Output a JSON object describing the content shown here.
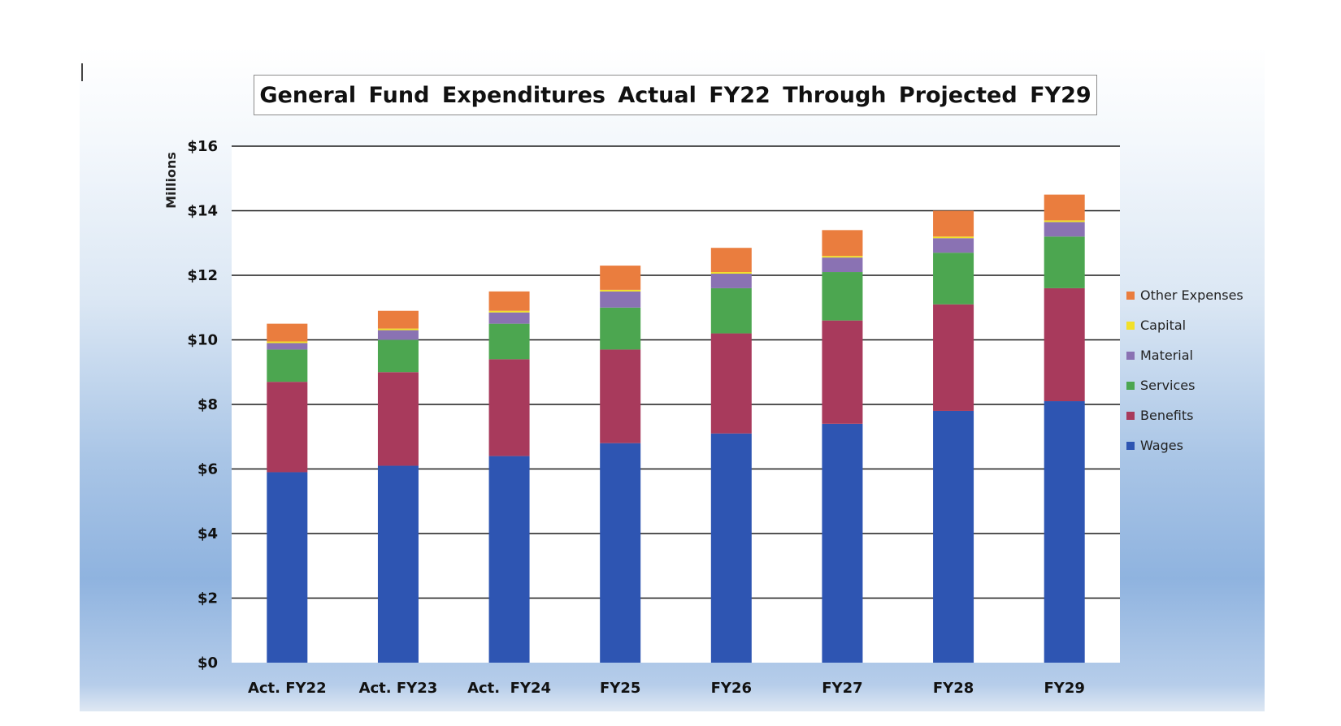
{
  "chart_data": {
    "type": "bar",
    "stacked": true,
    "title": "General Fund Expenditures Actual FY22 Through Projected FY29",
    "ylabel": "Millions",
    "xlabel": "",
    "ylim": [
      0,
      16
    ],
    "yticks": [
      0,
      2,
      4,
      6,
      8,
      10,
      12,
      14,
      16
    ],
    "ytick_labels": [
      "$0",
      "$2",
      "$4",
      "$6",
      "$8",
      "$10",
      "$12",
      "$14",
      "$16"
    ],
    "grid": true,
    "legend_position": "right",
    "categories": [
      "Act. FY22",
      "Act. FY23",
      "Act.  FY24",
      "FY25",
      "FY26",
      "FY27",
      "FY28",
      "FY29"
    ],
    "series": [
      {
        "name": "Wages",
        "color": "#2e55b2",
        "values": [
          5.9,
          6.1,
          6.4,
          6.8,
          7.1,
          7.4,
          7.8,
          8.1
        ]
      },
      {
        "name": "Benefits",
        "color": "#a83a5c",
        "values": [
          2.8,
          2.9,
          3.0,
          2.9,
          3.1,
          3.2,
          3.3,
          3.5
        ]
      },
      {
        "name": "Services",
        "color": "#4ca650",
        "values": [
          1.0,
          1.0,
          1.1,
          1.3,
          1.4,
          1.5,
          1.6,
          1.6
        ]
      },
      {
        "name": "Material",
        "color": "#8a72b3",
        "values": [
          0.2,
          0.3,
          0.35,
          0.5,
          0.45,
          0.45,
          0.45,
          0.45
        ]
      },
      {
        "name": "Capital",
        "color": "#f2e02a",
        "values": [
          0.05,
          0.05,
          0.05,
          0.05,
          0.05,
          0.05,
          0.05,
          0.05
        ]
      },
      {
        "name": "Other Expenses",
        "color": "#ea7d3e",
        "values": [
          0.55,
          0.55,
          0.6,
          0.75,
          0.75,
          0.8,
          0.8,
          0.8
        ]
      }
    ],
    "legend_order": [
      "Other Expenses",
      "Capital",
      "Material",
      "Services",
      "Benefits",
      "Wages"
    ]
  }
}
